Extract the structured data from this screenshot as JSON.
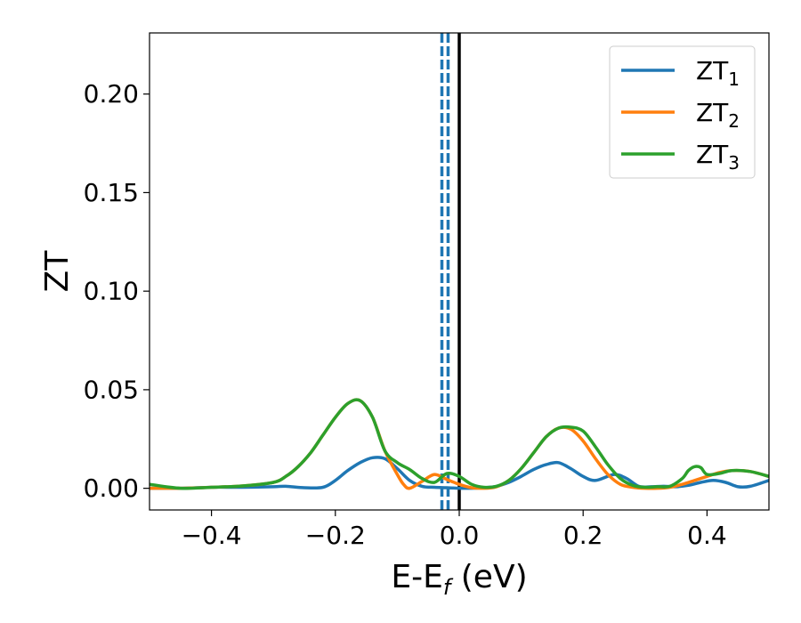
{
  "chart_data": {
    "type": "line",
    "title": "",
    "xlabel": "E-E",
    "xlabel_subscript": "f",
    "xlabel_unit": " (eV)",
    "ylabel": "ZT",
    "xlim": [
      -0.5,
      0.5
    ],
    "ylim": [
      -0.011,
      0.231
    ],
    "x_ticks": [
      -0.4,
      -0.2,
      0.0,
      0.2,
      0.4
    ],
    "x_tick_labels": [
      "−0.4",
      "−0.2",
      "0.0",
      "0.2",
      "0.4"
    ],
    "y_ticks": [
      0.0,
      0.05,
      0.1,
      0.15,
      0.2
    ],
    "y_tick_labels": [
      "0.00",
      "0.05",
      "0.10",
      "0.15",
      "0.20"
    ],
    "grid": false,
    "legend_position": "top-right",
    "vertical_lines": [
      {
        "x": -0.028,
        "style": "dashed",
        "color": "#1f77b4"
      },
      {
        "x": -0.018,
        "style": "dashed",
        "color": "#1f77b4"
      },
      {
        "x": 0.0,
        "style": "solid",
        "color": "#000000"
      }
    ],
    "series": [
      {
        "name": "ZT",
        "name_subscript": "1",
        "color": "#1f77b4",
        "x": [
          -0.5,
          -0.45,
          -0.4,
          -0.35,
          -0.3,
          -0.28,
          -0.25,
          -0.22,
          -0.2,
          -0.18,
          -0.16,
          -0.14,
          -0.12,
          -0.1,
          -0.08,
          -0.06,
          -0.04,
          -0.02,
          0.0,
          0.02,
          0.04,
          0.06,
          0.08,
          0.1,
          0.12,
          0.14,
          0.16,
          0.18,
          0.2,
          0.22,
          0.25,
          0.27,
          0.29,
          0.31,
          0.33,
          0.35,
          0.37,
          0.39,
          0.41,
          0.43,
          0.45,
          0.47,
          0.5
        ],
        "y": [
          0.0,
          0.0,
          0.0005,
          0.0005,
          0.0008,
          0.001,
          0.0003,
          0.0005,
          0.004,
          0.009,
          0.013,
          0.0155,
          0.015,
          0.01,
          0.004,
          0.001,
          0.0005,
          0.0003,
          0.0,
          0.0,
          0.0003,
          0.001,
          0.003,
          0.006,
          0.0095,
          0.012,
          0.013,
          0.01,
          0.006,
          0.004,
          0.007,
          0.005,
          0.001,
          0.0008,
          0.001,
          0.0008,
          0.0015,
          0.003,
          0.004,
          0.003,
          0.0008,
          0.001,
          0.004
        ]
      },
      {
        "name": "ZT",
        "name_subscript": "2",
        "color": "#ff7f0e",
        "x": [
          -0.5,
          -0.45,
          -0.4,
          -0.35,
          -0.3,
          -0.28,
          -0.26,
          -0.24,
          -0.22,
          -0.2,
          -0.18,
          -0.16,
          -0.14,
          -0.12,
          -0.1,
          -0.09,
          -0.08,
          -0.06,
          -0.04,
          -0.02,
          0.0,
          0.02,
          0.04,
          0.06,
          0.08,
          0.1,
          0.12,
          0.14,
          0.16,
          0.18,
          0.2,
          0.22,
          0.24,
          0.26,
          0.28,
          0.3,
          0.32,
          0.34,
          0.36,
          0.38,
          0.4,
          0.42,
          0.44,
          0.47,
          0.5
        ],
        "y": [
          0.0,
          0.0,
          0.0005,
          0.0012,
          0.003,
          0.006,
          0.011,
          0.018,
          0.027,
          0.036,
          0.043,
          0.0445,
          0.036,
          0.019,
          0.007,
          0.002,
          0.0,
          0.0035,
          0.007,
          0.0045,
          0.002,
          0.0003,
          0.0,
          0.0008,
          0.004,
          0.01,
          0.018,
          0.026,
          0.0305,
          0.03,
          0.024,
          0.015,
          0.007,
          0.002,
          0.0005,
          0.0,
          0.0,
          0.0005,
          0.002,
          0.004,
          0.006,
          0.008,
          0.009,
          0.0085,
          0.006
        ]
      },
      {
        "name": "ZT",
        "name_subscript": "3",
        "color": "#2ca02c",
        "x": [
          -0.5,
          -0.45,
          -0.4,
          -0.35,
          -0.3,
          -0.28,
          -0.26,
          -0.24,
          -0.22,
          -0.2,
          -0.18,
          -0.16,
          -0.14,
          -0.12,
          -0.1,
          -0.08,
          -0.06,
          -0.04,
          -0.02,
          0.0,
          0.02,
          0.04,
          0.06,
          0.08,
          0.1,
          0.12,
          0.14,
          0.16,
          0.18,
          0.2,
          0.22,
          0.24,
          0.26,
          0.28,
          0.3,
          0.32,
          0.34,
          0.36,
          0.37,
          0.38,
          0.39,
          0.4,
          0.42,
          0.44,
          0.47,
          0.5
        ],
        "y": [
          0.002,
          0.0,
          0.0005,
          0.0012,
          0.003,
          0.006,
          0.011,
          0.018,
          0.027,
          0.036,
          0.043,
          0.0445,
          0.036,
          0.019,
          0.013,
          0.0095,
          0.005,
          0.003,
          0.0075,
          0.006,
          0.002,
          0.0005,
          0.001,
          0.004,
          0.01,
          0.018,
          0.026,
          0.0305,
          0.031,
          0.029,
          0.021,
          0.012,
          0.005,
          0.0015,
          0.0005,
          0.0008,
          0.001,
          0.005,
          0.009,
          0.011,
          0.0105,
          0.007,
          0.0075,
          0.009,
          0.0085,
          0.006
        ]
      }
    ]
  }
}
